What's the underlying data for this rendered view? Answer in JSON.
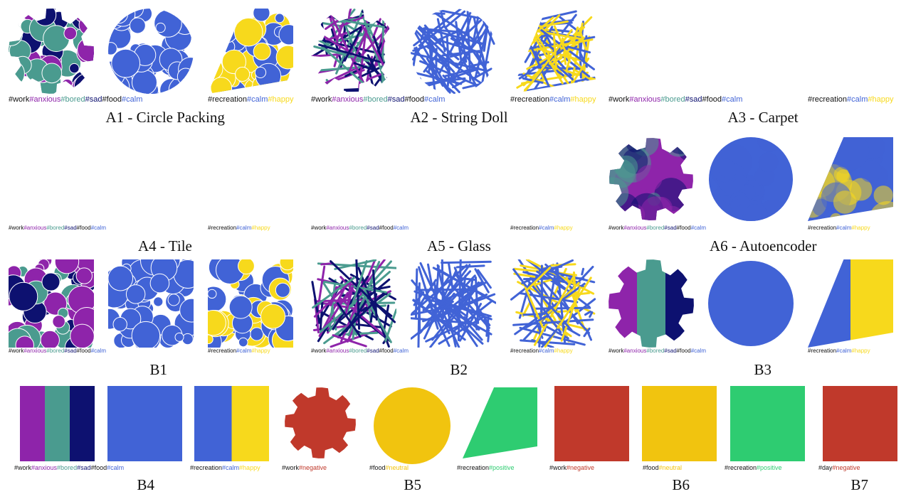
{
  "colors": {
    "work": "#111111",
    "anxious": "#8e24aa",
    "bored": "#4a9b8f",
    "sad": "#0d1170",
    "food": "#111111",
    "calm": "#4163d6",
    "recreation": "#111111",
    "happy": "#f7d91c",
    "negative": "#c0392b",
    "neutral": "#f1c40f",
    "positive": "#2ecc71",
    "day": "#111111"
  },
  "captions": {
    "a1": "A1 - Circle Packing",
    "a2": "A2 - String Doll",
    "a3": "A3 - Carpet",
    "a4": "A4 - Tile",
    "a5": "A5 - Glass",
    "a6": "A6 - Autoencoder",
    "b1": "B1",
    "b2": "B2",
    "b3": "B3",
    "b4": "B4",
    "b5": "B5",
    "b6": "B6",
    "b7": "B7"
  },
  "tags": {
    "work": "#work",
    "anxious": "#anxious",
    "bored": "#bored",
    "sad": "#sad",
    "food": "#food",
    "calm": "#calm",
    "recreation": "#recreation",
    "happy": "#happy",
    "negative": "#negative",
    "neutral": "#neutral",
    "positive": "#positive",
    "day": "#day"
  }
}
